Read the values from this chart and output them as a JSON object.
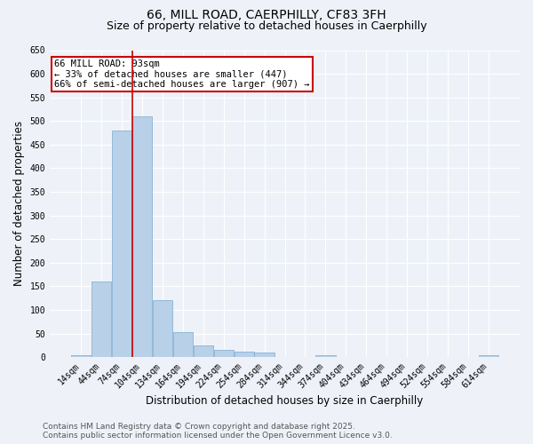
{
  "title": "66, MILL ROAD, CAERPHILLY, CF83 3FH",
  "subtitle": "Size of property relative to detached houses in Caerphilly",
  "xlabel": "Distribution of detached houses by size in Caerphilly",
  "ylabel": "Number of detached properties",
  "bar_color": "#b8d0e8",
  "bar_edge_color": "#7aaace",
  "categories": [
    "14sqm",
    "44sqm",
    "74sqm",
    "104sqm",
    "134sqm",
    "164sqm",
    "194sqm",
    "224sqm",
    "254sqm",
    "284sqm",
    "314sqm",
    "344sqm",
    "374sqm",
    "404sqm",
    "434sqm",
    "464sqm",
    "494sqm",
    "524sqm",
    "554sqm",
    "584sqm",
    "614sqm"
  ],
  "values": [
    3,
    160,
    480,
    510,
    120,
    52,
    25,
    15,
    12,
    9,
    0,
    0,
    4,
    0,
    0,
    0,
    0,
    0,
    0,
    0,
    3
  ],
  "ylim": [
    0,
    650
  ],
  "yticks": [
    0,
    50,
    100,
    150,
    200,
    250,
    300,
    350,
    400,
    450,
    500,
    550,
    600,
    650
  ],
  "vline_color": "#cc0000",
  "vline_x_index": 2.5,
  "annotation_text": "66 MILL ROAD: 93sqm\n← 33% of detached houses are smaller (447)\n66% of semi-detached houses are larger (907) →",
  "annotation_box_color": "#cc0000",
  "footer_line1": "Contains HM Land Registry data © Crown copyright and database right 2025.",
  "footer_line2": "Contains public sector information licensed under the Open Government Licence v3.0.",
  "background_color": "#eef2f8",
  "grid_color": "#ffffff",
  "title_fontsize": 10,
  "subtitle_fontsize": 9,
  "tick_fontsize": 7,
  "label_fontsize": 8.5,
  "footer_fontsize": 6.5,
  "annotation_fontsize": 7.5
}
